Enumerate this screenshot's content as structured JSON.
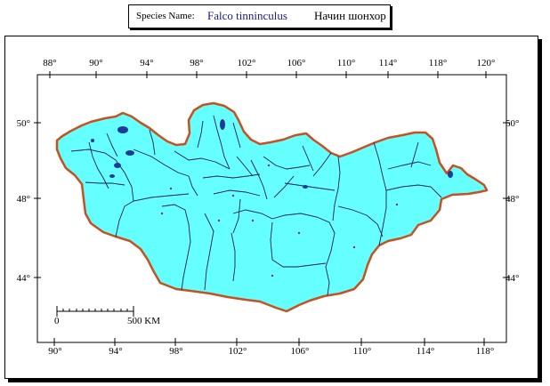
{
  "header": {
    "label": "Species Name:",
    "scientific_name": "Falco tinninculus",
    "local_name": "Начин шонхор"
  },
  "axes": {
    "top_longitudes": [
      "88°",
      "90°",
      "94°",
      "98°",
      "102°",
      "106°",
      "110°",
      "114°",
      "118°",
      "120°"
    ],
    "bottom_longitudes": [
      "90°",
      "94°",
      "98°",
      "102°",
      "106°",
      "110°",
      "114°",
      "118°"
    ],
    "left_latitudes": [
      "50°",
      "48°",
      "44°"
    ],
    "right_latitudes": [
      "50°",
      "48°",
      "44°"
    ]
  },
  "scale_bar": {
    "start": "0",
    "end": "500 KM"
  },
  "colors": {
    "land_fill": "#66ffff",
    "border": "#c8501e",
    "rivers": "#1a1a5a",
    "lakes": "#1e3c96",
    "points": "#9a2a6a"
  }
}
